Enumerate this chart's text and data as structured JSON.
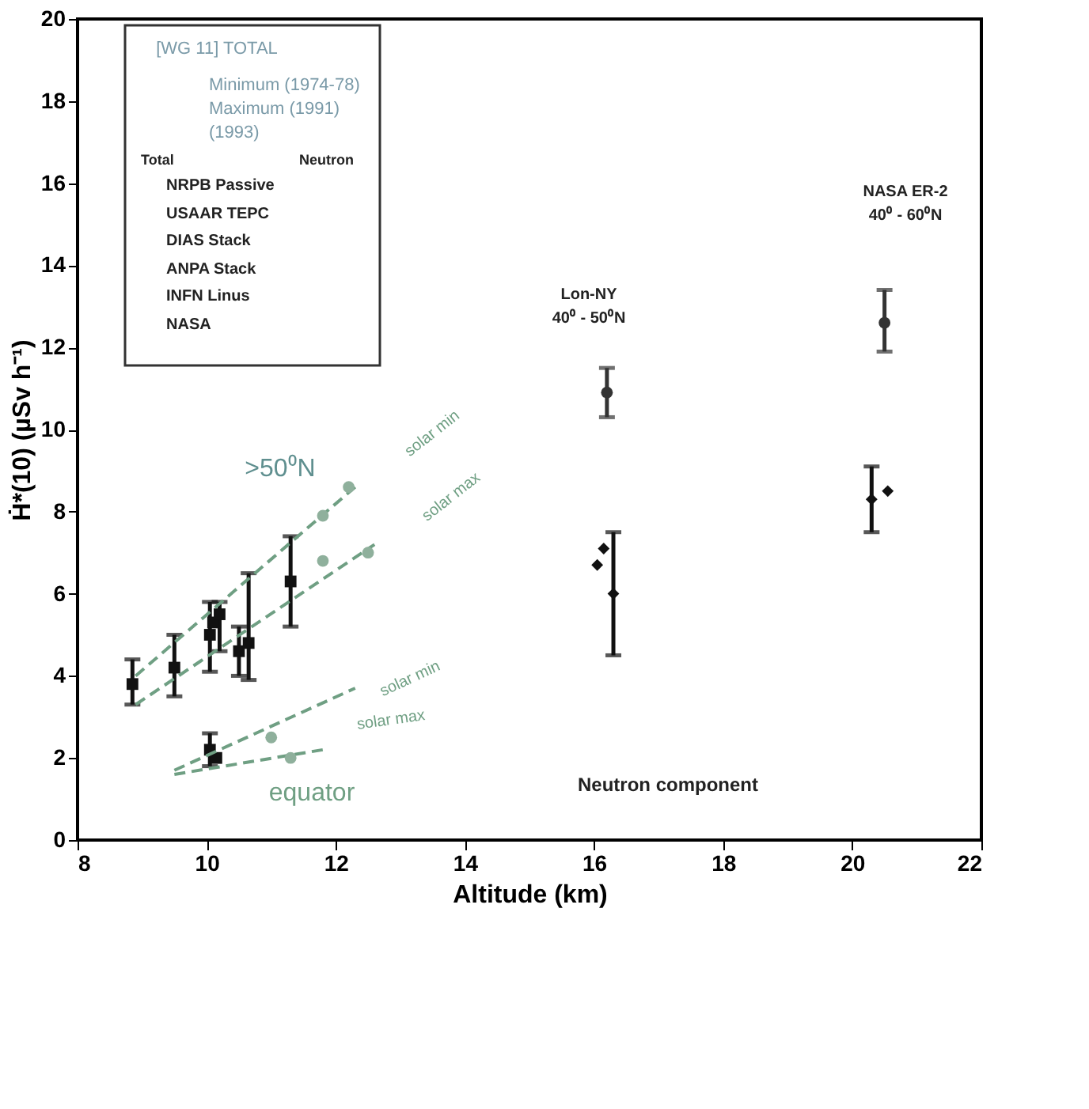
{
  "chart_data": {
    "type": "scatter",
    "xlabel": "Altitude (km)",
    "ylabel": "Ḣ*(10)  (µSv h⁻¹)",
    "xlim": [
      8,
      22
    ],
    "xticks": [
      8,
      10,
      12,
      14,
      16,
      18,
      20,
      22
    ],
    "ylim": [
      0,
      20
    ],
    "yticks": [
      0,
      2,
      4,
      6,
      8,
      10,
      12,
      14,
      16,
      18,
      20
    ],
    "grid": false,
    "series": [
      {
        "type": "scatter",
        "color": "#111111",
        "marker": "square",
        "x": [
          8.85,
          9.5,
          10.05,
          10.1,
          10.2,
          10.5,
          10.65,
          11.3,
          10.05,
          10.15
        ],
        "values": [
          3.8,
          4.2,
          5.0,
          5.3,
          5.5,
          4.6,
          4.8,
          6.3,
          2.2,
          2.0
        ],
        "errors": [
          [
            3.3,
            4.4
          ],
          [
            3.5,
            5.0
          ],
          [
            4.1,
            5.8
          ],
          null,
          [
            4.6,
            5.8
          ],
          [
            4.0,
            5.2
          ],
          [
            3.9,
            6.5
          ],
          [
            5.2,
            7.4
          ],
          [
            1.8,
            2.6
          ],
          null
        ]
      },
      {
        "type": "scatter",
        "color": "#333333",
        "marker": "circle",
        "x": [
          16.2,
          20.5
        ],
        "values": [
          10.9,
          12.6
        ],
        "errors": [
          [
            10.3,
            11.5
          ],
          [
            11.9,
            13.4
          ]
        ]
      },
      {
        "type": "scatter",
        "color": "#111111",
        "marker": "diamond",
        "x": [
          16.05,
          16.15,
          16.3,
          20.3,
          20.55
        ],
        "values": [
          6.7,
          7.1,
          6.0,
          8.3,
          8.5
        ],
        "errors": [
          null,
          null,
          [
            4.5,
            7.5
          ],
          [
            7.5,
            9.1
          ],
          null
        ]
      },
      {
        "type": "line",
        "color": "#6f9f83",
        "line_style": "dashed",
        "marker": "none",
        "x": [
          8.9,
          12.3
        ],
        "values": [
          4.0,
          8.6
        ]
      },
      {
        "type": "line",
        "color": "#6f9f83",
        "line_style": "dashed",
        "marker": "none",
        "x": [
          8.9,
          12.6
        ],
        "values": [
          3.3,
          7.2
        ]
      },
      {
        "type": "line",
        "color": "#6f9f83",
        "line_style": "dashed",
        "marker": "none",
        "x": [
          9.5,
          12.3
        ],
        "values": [
          1.7,
          3.7
        ]
      },
      {
        "type": "line",
        "color": "#6f9f83",
        "line_style": "dashed",
        "marker": "none",
        "x": [
          9.5,
          11.8
        ],
        "values": [
          1.6,
          2.2
        ]
      },
      {
        "type": "scatter",
        "color": "#8fb09c",
        "marker": "circle",
        "x": [
          11.8,
          11.8,
          12.2,
          12.5,
          11.0,
          11.3
        ],
        "values": [
          6.8,
          7.9,
          8.6,
          7.0,
          2.5,
          2.0
        ]
      }
    ],
    "annotations": [
      "[WG 11] TOTAL",
      "Minimum (1974-78)",
      "Maximum (1991)",
      "(1993)",
      "Total",
      "Neutron",
      "NRPB Passive",
      "USAAR TEPC",
      "DIAS Stack",
      "ANPA Stack",
      "INFN Linus",
      "NASA",
      ">50⁰N",
      "solar min",
      "solar max",
      "solar min",
      "solar max",
      "equator",
      "Lon-NY",
      "40⁰ - 50⁰N",
      "NASA ER-2",
      "40⁰ - 60⁰N",
      "Neutron component"
    ]
  }
}
